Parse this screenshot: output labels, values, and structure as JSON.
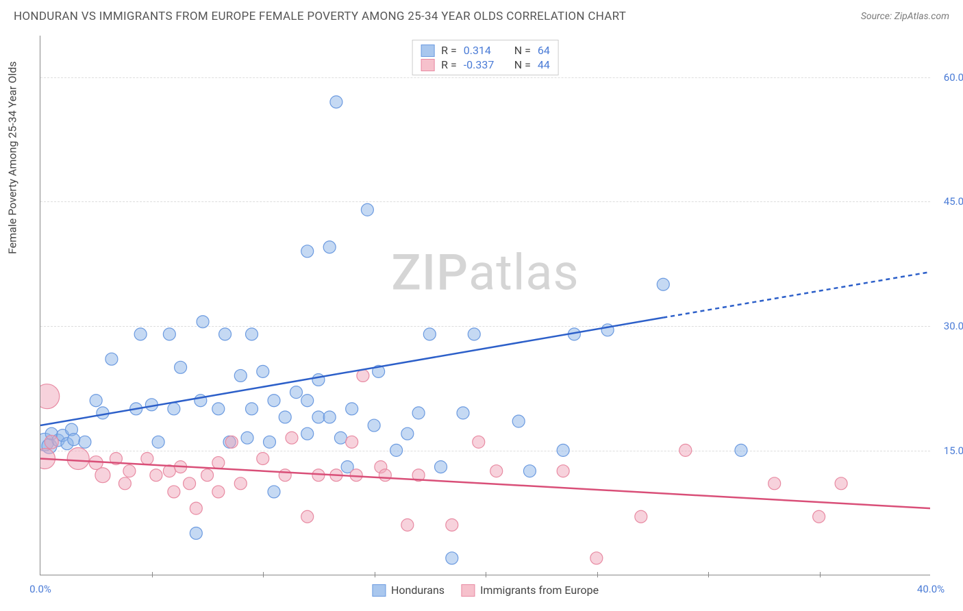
{
  "header": {
    "title": "HONDURAN VS IMMIGRANTS FROM EUROPE FEMALE POVERTY AMONG 25-34 YEAR OLDS CORRELATION CHART",
    "source": "Source: ZipAtlas.com"
  },
  "chart": {
    "type": "scatter",
    "watermark": "ZIPatlas",
    "yaxis_label": "Female Poverty Among 25-34 Year Olds",
    "background_color": "#ffffff",
    "grid_color": "#dddddd",
    "grid_dash": "4,4",
    "axis_color": "#888888",
    "label_fontsize": 16,
    "tick_fontsize": 15,
    "tick_color": "#4a7bd6",
    "xlim": [
      0,
      40
    ],
    "ylim": [
      0,
      65
    ],
    "yticks": [
      {
        "v": 15,
        "label": "15.0%"
      },
      {
        "v": 30,
        "label": "30.0%"
      },
      {
        "v": 45,
        "label": "45.0%"
      },
      {
        "v": 60,
        "label": "60.0%"
      }
    ],
    "xticks_minor": [
      5,
      10,
      15,
      20,
      25,
      30,
      35
    ],
    "xlabels": [
      {
        "v": 0,
        "label": "0.0%"
      },
      {
        "v": 40,
        "label": "40.0%"
      }
    ],
    "legend_top": [
      {
        "swatch_fill": "#a9c7ee",
        "swatch_stroke": "#6b9ae0",
        "r_label": "R =",
        "r": "0.314",
        "n_label": "N =",
        "n": "64"
      },
      {
        "swatch_fill": "#f6c1cc",
        "swatch_stroke": "#e88aa2",
        "r_label": "R =",
        "r": "-0.337",
        "n_label": "N =",
        "n": "44"
      }
    ],
    "legend_bottom": [
      {
        "swatch_fill": "#a9c7ee",
        "swatch_stroke": "#6b9ae0",
        "label": "Hondurans"
      },
      {
        "swatch_fill": "#f6c1cc",
        "swatch_stroke": "#e88aa2",
        "label": "Immigrants from Europe"
      }
    ],
    "series": [
      {
        "name": "Hondurans",
        "marker_fill": "rgba(139,179,232,0.5)",
        "marker_stroke": "#6b9ae0",
        "marker_radius_default": 9,
        "trend_color": "#2c5fc9",
        "trend_width": 2.5,
        "trend_solid": {
          "x1": 0,
          "y1": 18,
          "x2": 28,
          "y2": 31
        },
        "trend_dashed": {
          "x1": 28,
          "y1": 31,
          "x2": 40,
          "y2": 36.5
        },
        "points": [
          {
            "x": 0.2,
            "y": 16,
            "r": 13
          },
          {
            "x": 0.4,
            "y": 15.5,
            "r": 11
          },
          {
            "x": 0.5,
            "y": 17,
            "r": 9
          },
          {
            "x": 0.8,
            "y": 16.2,
            "r": 9
          },
          {
            "x": 1.0,
            "y": 16.8,
            "r": 9
          },
          {
            "x": 1.2,
            "y": 15.8,
            "r": 9
          },
          {
            "x": 1.4,
            "y": 17.5,
            "r": 9
          },
          {
            "x": 1.5,
            "y": 16.3,
            "r": 9
          },
          {
            "x": 2.0,
            "y": 16,
            "r": 9
          },
          {
            "x": 2.5,
            "y": 21,
            "r": 9
          },
          {
            "x": 2.8,
            "y": 19.5,
            "r": 9
          },
          {
            "x": 3.2,
            "y": 26,
            "r": 9
          },
          {
            "x": 4.3,
            "y": 20,
            "r": 9
          },
          {
            "x": 4.5,
            "y": 29,
            "r": 9
          },
          {
            "x": 5.0,
            "y": 20.5,
            "r": 9
          },
          {
            "x": 5.3,
            "y": 16,
            "r": 9
          },
          {
            "x": 5.8,
            "y": 29,
            "r": 9
          },
          {
            "x": 6.0,
            "y": 20,
            "r": 9
          },
          {
            "x": 6.3,
            "y": 25,
            "r": 9
          },
          {
            "x": 7.0,
            "y": 5,
            "r": 9
          },
          {
            "x": 7.2,
            "y": 21,
            "r": 9
          },
          {
            "x": 7.3,
            "y": 30.5,
            "r": 9
          },
          {
            "x": 8.0,
            "y": 20,
            "r": 9
          },
          {
            "x": 8.3,
            "y": 29,
            "r": 9
          },
          {
            "x": 8.5,
            "y": 16,
            "r": 9
          },
          {
            "x": 9.0,
            "y": 24,
            "r": 9
          },
          {
            "x": 9.3,
            "y": 16.5,
            "r": 9
          },
          {
            "x": 9.5,
            "y": 29,
            "r": 9
          },
          {
            "x": 9.5,
            "y": 20,
            "r": 9
          },
          {
            "x": 10.0,
            "y": 24.5,
            "r": 9
          },
          {
            "x": 10.3,
            "y": 16,
            "r": 9
          },
          {
            "x": 10.5,
            "y": 21,
            "r": 9
          },
          {
            "x": 10.5,
            "y": 10,
            "r": 9
          },
          {
            "x": 11.0,
            "y": 19,
            "r": 9
          },
          {
            "x": 11.5,
            "y": 22,
            "r": 9
          },
          {
            "x": 12.0,
            "y": 17,
            "r": 9
          },
          {
            "x": 12.0,
            "y": 21,
            "r": 9
          },
          {
            "x": 12.0,
            "y": 39,
            "r": 9
          },
          {
            "x": 12.5,
            "y": 19,
            "r": 9
          },
          {
            "x": 12.5,
            "y": 23.5,
            "r": 9
          },
          {
            "x": 13.0,
            "y": 39.5,
            "r": 9
          },
          {
            "x": 13.0,
            "y": 19,
            "r": 9
          },
          {
            "x": 13.3,
            "y": 57,
            "r": 9
          },
          {
            "x": 13.5,
            "y": 16.5,
            "r": 9
          },
          {
            "x": 13.8,
            "y": 13,
            "r": 9
          },
          {
            "x": 14.0,
            "y": 20,
            "r": 9
          },
          {
            "x": 14.7,
            "y": 44,
            "r": 9
          },
          {
            "x": 15.0,
            "y": 18,
            "r": 9
          },
          {
            "x": 15.2,
            "y": 24.5,
            "r": 9
          },
          {
            "x": 16.0,
            "y": 15,
            "r": 9
          },
          {
            "x": 16.5,
            "y": 17,
            "r": 9
          },
          {
            "x": 17.0,
            "y": 19.5,
            "r": 9
          },
          {
            "x": 17.5,
            "y": 29,
            "r": 9
          },
          {
            "x": 18.0,
            "y": 13,
            "r": 9
          },
          {
            "x": 18.5,
            "y": 2,
            "r": 9
          },
          {
            "x": 19.0,
            "y": 19.5,
            "r": 9
          },
          {
            "x": 19.5,
            "y": 29,
            "r": 9
          },
          {
            "x": 21.5,
            "y": 18.5,
            "r": 9
          },
          {
            "x": 22.0,
            "y": 12.5,
            "r": 9
          },
          {
            "x": 23.5,
            "y": 15,
            "r": 9
          },
          {
            "x": 24.0,
            "y": 29,
            "r": 9
          },
          {
            "x": 25.5,
            "y": 29.5,
            "r": 9
          },
          {
            "x": 28.0,
            "y": 35,
            "r": 9
          },
          {
            "x": 31.5,
            "y": 15,
            "r": 9
          }
        ]
      },
      {
        "name": "Immigrants from Europe",
        "marker_fill": "rgba(240,165,185,0.5)",
        "marker_stroke": "#e88aa2",
        "marker_radius_default": 9,
        "trend_color": "#d94f78",
        "trend_width": 2.5,
        "trend_solid": {
          "x1": 0,
          "y1": 14,
          "x2": 40,
          "y2": 8
        },
        "trend_dashed": null,
        "points": [
          {
            "x": 0.2,
            "y": 14,
            "r": 15
          },
          {
            "x": 0.3,
            "y": 21.5,
            "r": 18
          },
          {
            "x": 0.5,
            "y": 16,
            "r": 10
          },
          {
            "x": 1.7,
            "y": 14,
            "r": 16
          },
          {
            "x": 2.5,
            "y": 13.5,
            "r": 10
          },
          {
            "x": 2.8,
            "y": 12,
            "r": 11
          },
          {
            "x": 3.4,
            "y": 14,
            "r": 9
          },
          {
            "x": 3.8,
            "y": 11,
            "r": 9
          },
          {
            "x": 4.0,
            "y": 12.5,
            "r": 9
          },
          {
            "x": 4.8,
            "y": 14,
            "r": 9
          },
          {
            "x": 5.2,
            "y": 12,
            "r": 9
          },
          {
            "x": 5.8,
            "y": 12.5,
            "r": 9
          },
          {
            "x": 6.0,
            "y": 10,
            "r": 9
          },
          {
            "x": 6.3,
            "y": 13,
            "r": 9
          },
          {
            "x": 6.7,
            "y": 11,
            "r": 9
          },
          {
            "x": 7.0,
            "y": 8,
            "r": 9
          },
          {
            "x": 7.5,
            "y": 12,
            "r": 9
          },
          {
            "x": 8.0,
            "y": 13.5,
            "r": 9
          },
          {
            "x": 8.0,
            "y": 10,
            "r": 9
          },
          {
            "x": 8.6,
            "y": 16,
            "r": 9
          },
          {
            "x": 9.0,
            "y": 11,
            "r": 9
          },
          {
            "x": 10.0,
            "y": 14,
            "r": 9
          },
          {
            "x": 11.0,
            "y": 12,
            "r": 9
          },
          {
            "x": 11.3,
            "y": 16.5,
            "r": 9
          },
          {
            "x": 12.0,
            "y": 7,
            "r": 9
          },
          {
            "x": 12.5,
            "y": 12,
            "r": 9
          },
          {
            "x": 13.3,
            "y": 12,
            "r": 9
          },
          {
            "x": 14.0,
            "y": 16,
            "r": 9
          },
          {
            "x": 14.2,
            "y": 12,
            "r": 9
          },
          {
            "x": 14.5,
            "y": 24,
            "r": 9
          },
          {
            "x": 15.3,
            "y": 13,
            "r": 9
          },
          {
            "x": 15.5,
            "y": 12,
            "r": 9
          },
          {
            "x": 16.5,
            "y": 6,
            "r": 9
          },
          {
            "x": 17.0,
            "y": 12,
            "r": 9
          },
          {
            "x": 18.5,
            "y": 6,
            "r": 9
          },
          {
            "x": 19.7,
            "y": 16,
            "r": 9
          },
          {
            "x": 20.5,
            "y": 12.5,
            "r": 9
          },
          {
            "x": 23.5,
            "y": 12.5,
            "r": 9
          },
          {
            "x": 25.0,
            "y": 2,
            "r": 9
          },
          {
            "x": 27.0,
            "y": 7,
            "r": 9
          },
          {
            "x": 29.0,
            "y": 15,
            "r": 9
          },
          {
            "x": 33.0,
            "y": 11,
            "r": 9
          },
          {
            "x": 35.0,
            "y": 7,
            "r": 9
          },
          {
            "x": 36.0,
            "y": 11,
            "r": 9
          }
        ]
      }
    ]
  }
}
